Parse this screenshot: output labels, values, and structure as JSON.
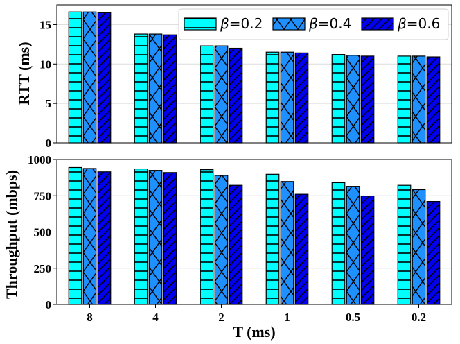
{
  "chart_data": [
    {
      "type": "bar",
      "panel": "top",
      "ylabel": "RTT (ms)",
      "xlabel": "",
      "ylim": [
        0,
        17.5
      ],
      "yticks": [
        0,
        5,
        10,
        15
      ],
      "grid": true,
      "categories": [
        "8",
        "4",
        "2",
        "1",
        "0.5",
        "0.2"
      ],
      "series": [
        {
          "name": "β=0.2",
          "values": [
            16.6,
            13.8,
            12.3,
            11.5,
            11.2,
            11.0
          ]
        },
        {
          "name": "β=0.4",
          "values": [
            16.6,
            13.8,
            12.3,
            11.5,
            11.1,
            11.0
          ]
        },
        {
          "name": "β=0.6",
          "values": [
            16.5,
            13.7,
            12.0,
            11.4,
            11.0,
            10.9
          ]
        }
      ]
    },
    {
      "type": "bar",
      "panel": "bottom",
      "ylabel": "Throughput (mbps)",
      "xlabel": "T (ms)",
      "ylim": [
        0,
        1000
      ],
      "yticks": [
        0,
        250,
        500,
        750,
        1000
      ],
      "grid": true,
      "categories": [
        "8",
        "4",
        "2",
        "1",
        "0.5",
        "0.2"
      ],
      "series": [
        {
          "name": "β=0.2",
          "values": [
            945,
            935,
            930,
            898,
            840,
            822
          ]
        },
        {
          "name": "β=0.4",
          "values": [
            938,
            925,
            890,
            848,
            815,
            792
          ]
        },
        {
          "name": "β=0.6",
          "values": [
            915,
            910,
            822,
            760,
            748,
            710
          ]
        }
      ]
    }
  ],
  "legend": {
    "placement": "top-right",
    "symbol": "β",
    "entries": [
      {
        "value": "=0.2",
        "color": "#00ffff",
        "pattern": "horizontal-lines"
      },
      {
        "value": "=0.4",
        "color": "#1e90ff",
        "pattern": "cross-hatch"
      },
      {
        "value": "=0.6",
        "color": "#0000ee",
        "pattern": "diagonal-lines"
      }
    ]
  },
  "colors": [
    "#00ffff",
    "#1e90ff",
    "#0000ee"
  ]
}
